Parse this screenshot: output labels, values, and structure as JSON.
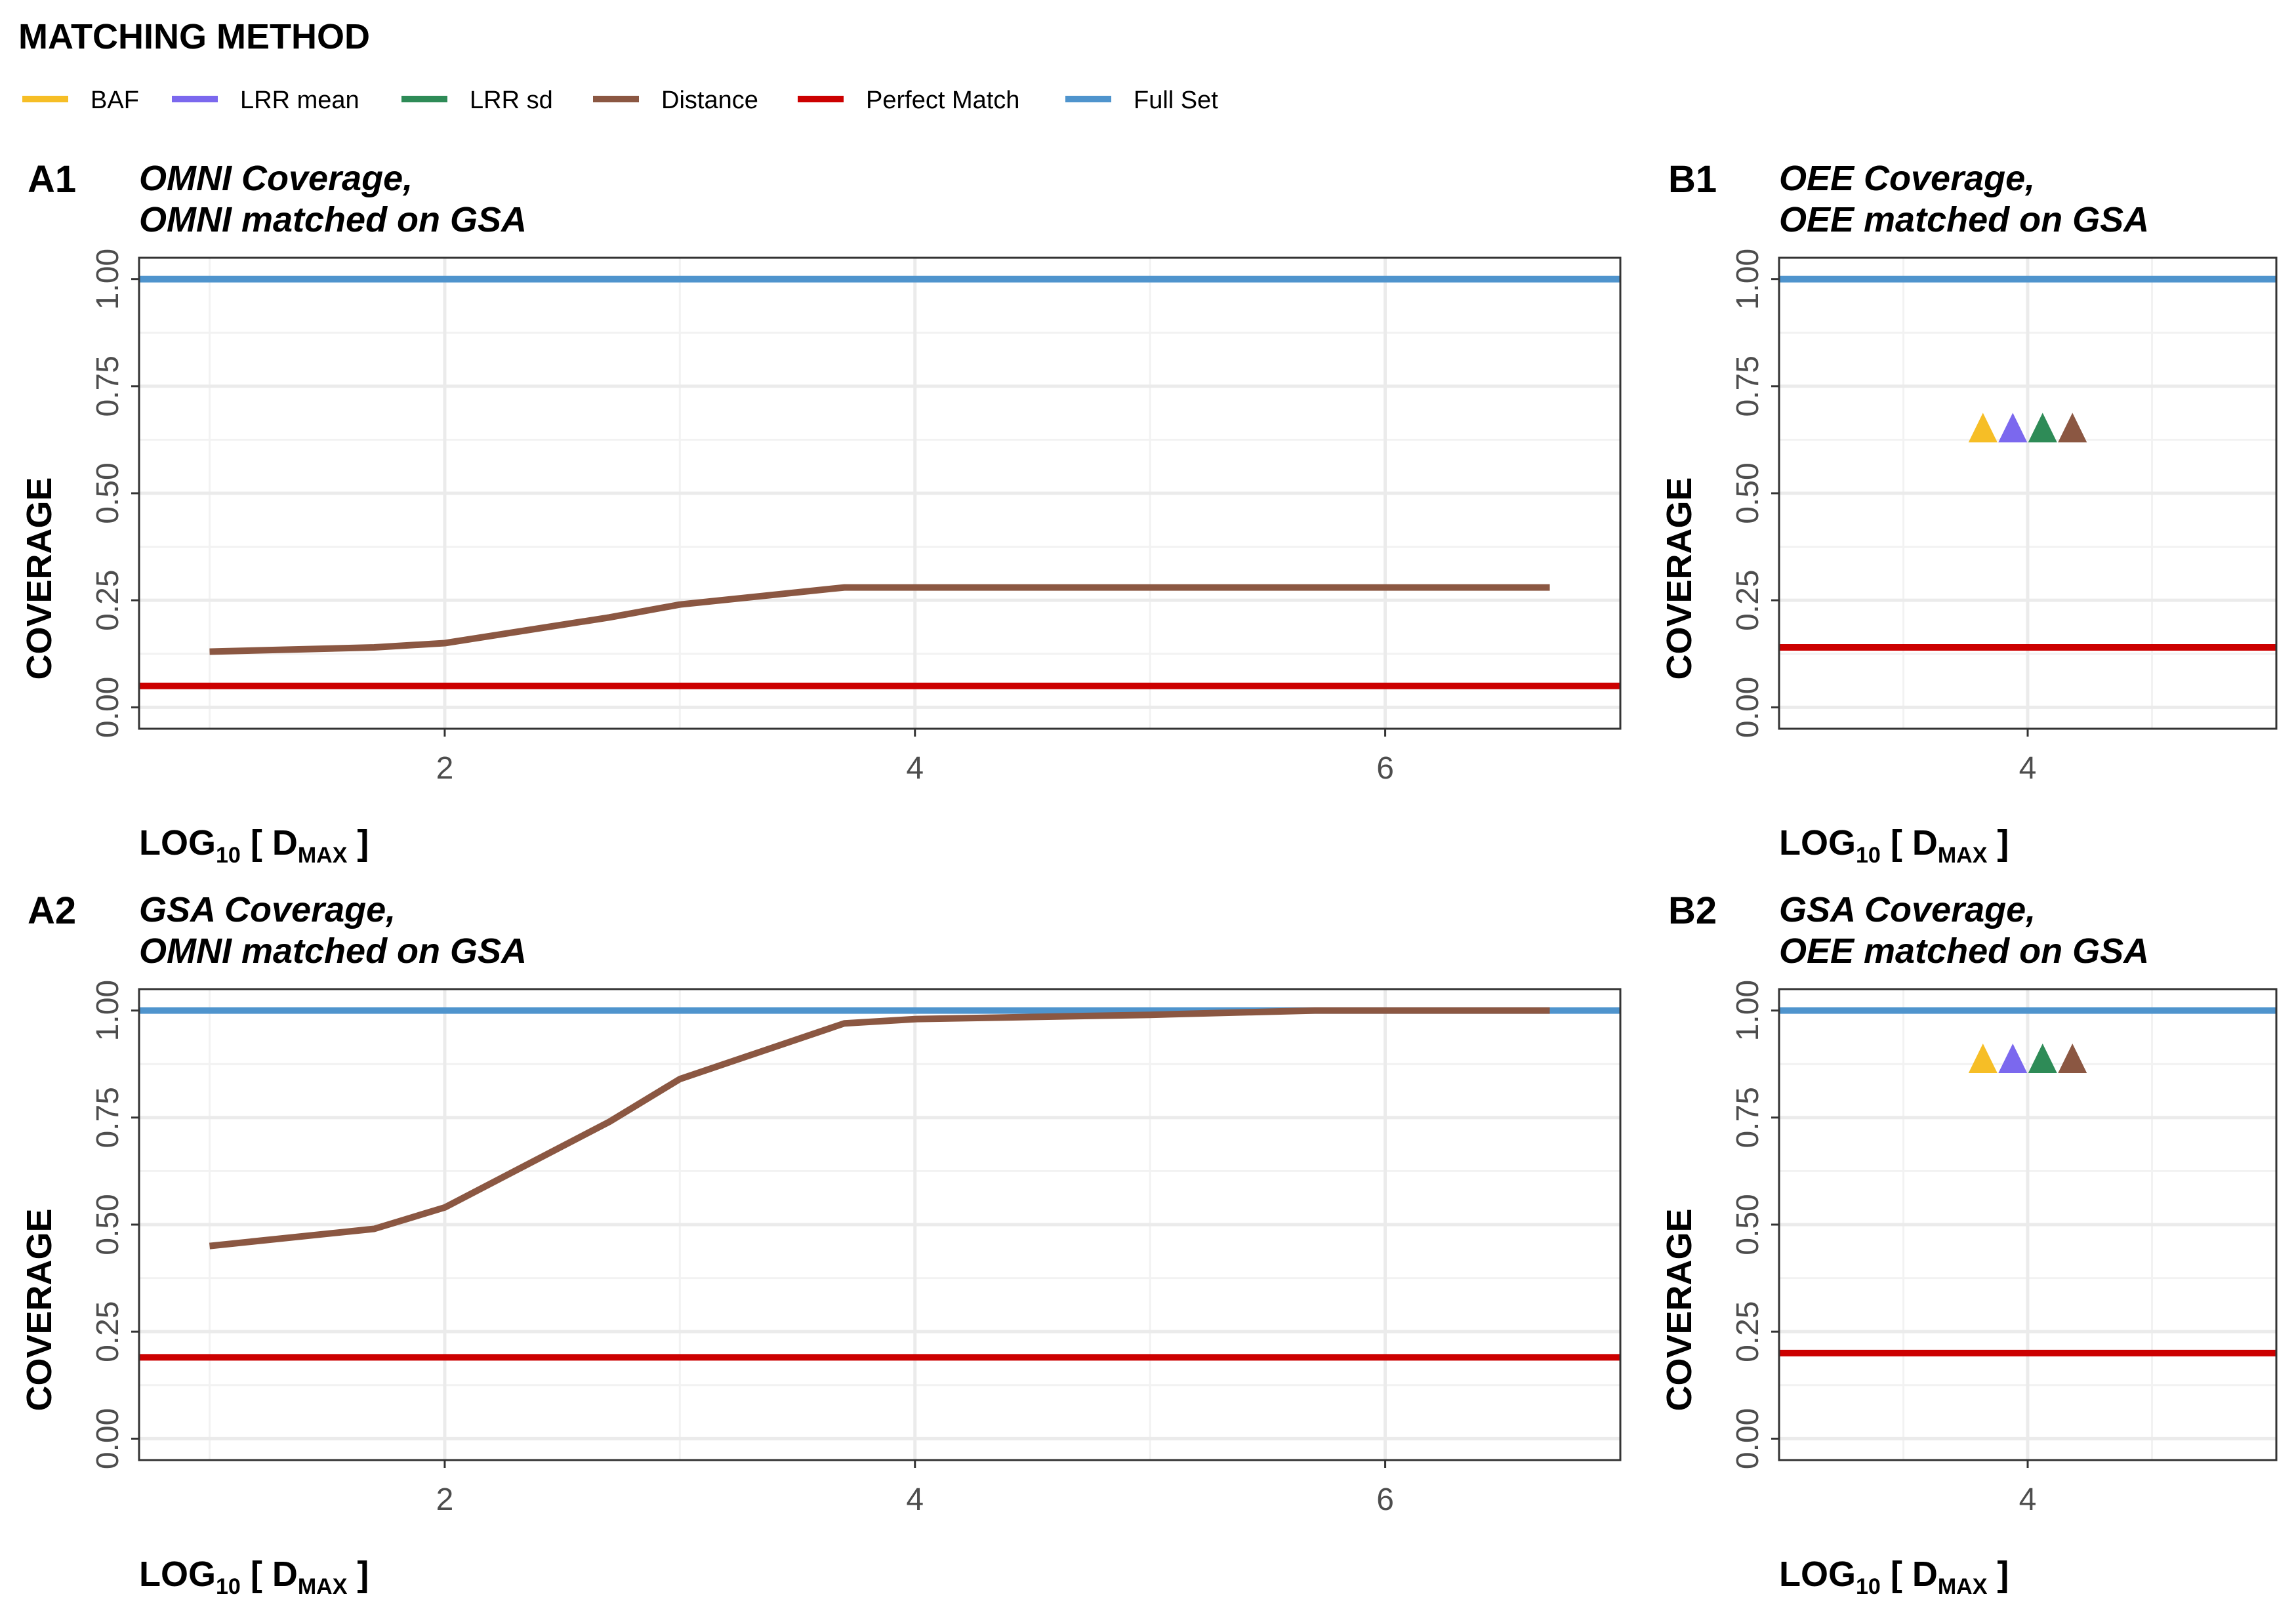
{
  "legend": {
    "title": "MATCHING METHOD",
    "items": [
      {
        "label": "BAF",
        "color": "#F6BE26"
      },
      {
        "label": "LRR mean",
        "color": "#7B68EE"
      },
      {
        "label": "LRR sd",
        "color": "#2E8B57"
      },
      {
        "label": "Distance",
        "color": "#8B5742"
      },
      {
        "label": "Perfect Match",
        "color": "#CC0000"
      },
      {
        "label": "Full Set",
        "color": "#4F94CD"
      }
    ]
  },
  "axis_titles": {
    "y": "COVERAGE",
    "x_main": "LOG",
    "x_base": "10",
    "x_open": " [ D",
    "x_sub": "MAX",
    "x_close": " ]"
  },
  "chart_data": [
    {
      "type": "line",
      "tag": "A1",
      "title_line1": "OMNI Coverage,",
      "title_line2": "OMNI matched on GSA",
      "xlim": [
        0.7,
        7.0
      ],
      "ylim": [
        -0.05,
        1.05
      ],
      "xticks": [
        2,
        4,
        6
      ],
      "yticks": [
        0.0,
        0.25,
        0.5,
        0.75,
        1.0
      ],
      "ytick_labels": [
        "0.00",
        "0.25",
        "0.50",
        "0.75",
        "1.00"
      ],
      "hlines": [
        {
          "name": "Full Set",
          "y": 1.0
        },
        {
          "name": "Perfect Match",
          "y": 0.05
        }
      ],
      "series": [
        {
          "name": "Distance",
          "x": [
            1.0,
            1.7,
            2.0,
            2.7,
            3.0,
            3.7,
            4.0,
            5.0,
            6.0,
            6.7
          ],
          "y": [
            0.13,
            0.14,
            0.15,
            0.21,
            0.24,
            0.28,
            0.28,
            0.28,
            0.28,
            0.28
          ]
        }
      ],
      "points": []
    },
    {
      "type": "scatter",
      "tag": "B1",
      "title_line1": "OEE Coverage,",
      "title_line2": "OEE matched on GSA",
      "xlim": [
        3.0,
        5.0
      ],
      "ylim": [
        -0.05,
        1.05
      ],
      "xticks": [
        4
      ],
      "yticks": [
        0.0,
        0.25,
        0.5,
        0.75,
        1.0
      ],
      "ytick_labels": [
        "0.00",
        "0.25",
        "0.50",
        "0.75",
        "1.00"
      ],
      "hlines": [
        {
          "name": "Full Set",
          "y": 1.0
        },
        {
          "name": "Perfect Match",
          "y": 0.14
        }
      ],
      "series": [],
      "points": [
        {
          "name": "BAF",
          "x": 3.82,
          "y": 0.645
        },
        {
          "name": "LRR mean",
          "x": 3.94,
          "y": 0.645
        },
        {
          "name": "LRR sd",
          "x": 4.06,
          "y": 0.645
        },
        {
          "name": "Distance",
          "x": 4.18,
          "y": 0.645
        }
      ]
    },
    {
      "type": "line",
      "tag": "A2",
      "title_line1": "GSA Coverage,",
      "title_line2": "OMNI matched on GSA",
      "xlim": [
        0.7,
        7.0
      ],
      "ylim": [
        -0.05,
        1.05
      ],
      "xticks": [
        2,
        4,
        6
      ],
      "yticks": [
        0.0,
        0.25,
        0.5,
        0.75,
        1.0
      ],
      "ytick_labels": [
        "0.00",
        "0.25",
        "0.50",
        "0.75",
        "1.00"
      ],
      "hlines": [
        {
          "name": "Full Set",
          "y": 1.0
        },
        {
          "name": "Perfect Match",
          "y": 0.19
        }
      ],
      "series": [
        {
          "name": "Distance",
          "x": [
            1.0,
            1.7,
            2.0,
            2.7,
            3.0,
            3.7,
            4.0,
            5.0,
            5.7,
            6.0,
            6.7
          ],
          "y": [
            0.45,
            0.49,
            0.54,
            0.74,
            0.84,
            0.97,
            0.98,
            0.99,
            1.0,
            1.0,
            1.0
          ]
        }
      ],
      "points": []
    },
    {
      "type": "scatter",
      "tag": "B2",
      "title_line1": "GSA Coverage,",
      "title_line2": "OEE matched on GSA",
      "xlim": [
        3.0,
        5.0
      ],
      "ylim": [
        -0.05,
        1.05
      ],
      "xticks": [
        4
      ],
      "yticks": [
        0.0,
        0.25,
        0.5,
        0.75,
        1.0
      ],
      "ytick_labels": [
        "0.00",
        "0.25",
        "0.50",
        "0.75",
        "1.00"
      ],
      "hlines": [
        {
          "name": "Full Set",
          "y": 1.0
        },
        {
          "name": "Perfect Match",
          "y": 0.2
        }
      ],
      "series": [],
      "points": [
        {
          "name": "BAF",
          "x": 3.82,
          "y": 0.88
        },
        {
          "name": "LRR mean",
          "x": 3.94,
          "y": 0.88
        },
        {
          "name": "LRR sd",
          "x": 4.06,
          "y": 0.88
        },
        {
          "name": "Distance",
          "x": 4.18,
          "y": 0.88
        }
      ]
    }
  ]
}
